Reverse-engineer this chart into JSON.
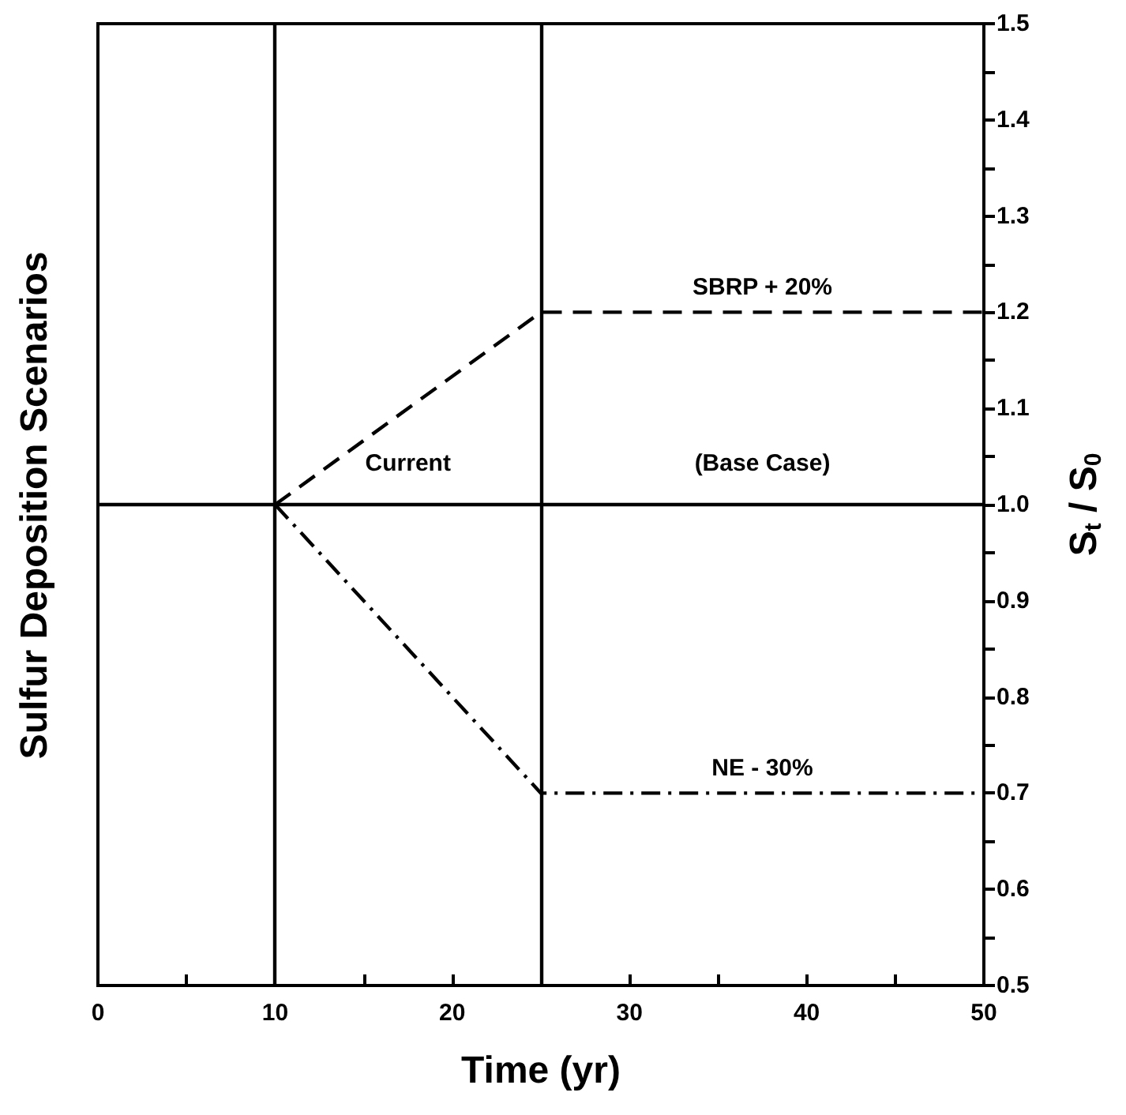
{
  "chart_data": {
    "type": "line",
    "title": "Sulfur Deposition Scenarios",
    "xlabel": "Time (yr)",
    "ylabel": "S$_{t}$ / S$_{0}$",
    "xlim": [
      0,
      50
    ],
    "xticks": [
      0,
      {
        "value": 5,
        "label": null
      },
      10,
      {
        "value": 15,
        "label": null
      },
      20,
      {
        "value": 25,
        "label": null
      },
      30,
      {
        "value": 35,
        "label": null
      },
      40,
      {
        "value": 45,
        "label": null
      },
      50
    ],
    "ylim": [
      0.5,
      1.5
    ],
    "yticks": [
      {
        "value": 0.5,
        "label": "0.5"
      },
      {
        "value": 0.55,
        "label": null
      },
      {
        "value": 0.6,
        "label": "0.6"
      },
      {
        "value": 0.65,
        "label": null
      },
      {
        "value": 0.7,
        "label": "0.7"
      },
      {
        "value": 0.75,
        "label": null
      },
      {
        "value": 0.8,
        "label": "0.8"
      },
      {
        "value": 0.85,
        "label": null
      },
      {
        "value": 0.9,
        "label": "0.9"
      },
      {
        "value": 0.95,
        "label": null
      },
      {
        "value": 1.0,
        "label": "1.0"
      },
      {
        "value": 1.05,
        "label": null
      },
      {
        "value": 1.1,
        "label": "1.1"
      },
      {
        "value": 1.15,
        "label": null
      },
      {
        "value": 1.2,
        "label": "1.2"
      },
      {
        "value": 1.25,
        "label": null
      },
      {
        "value": 1.3,
        "label": "1.3"
      },
      {
        "value": 1.35,
        "label": null
      },
      {
        "value": 1.4,
        "label": "1.4"
      },
      {
        "value": 1.45,
        "label": null
      },
      {
        "value": 1.5,
        "label": "1.5"
      }
    ],
    "series": [
      {
        "color": "#000000",
        "line_style": "solid",
        "x": [
          0,
          50
        ],
        "values": [
          1.0,
          1.0
        ]
      },
      {
        "name": "SBRP + 20%",
        "color": "#000000",
        "line_style": "dashed",
        "x": [
          10,
          25,
          50
        ],
        "values": [
          1.0,
          1.2,
          1.2
        ]
      },
      {
        "name": "NE - 30%",
        "color": "#000000",
        "line_style": "dashdot",
        "x": [
          10,
          25,
          50
        ],
        "values": [
          1.0,
          0.7,
          0.7
        ]
      }
    ],
    "ref_lines": [
      {
        "axis": "x",
        "value": 10,
        "color": "#000000",
        "line_style": "solid"
      },
      {
        "axis": "x",
        "value": 25,
        "color": "#000000",
        "line_style": "solid"
      }
    ],
    "annotations": [
      "Current",
      "(Base Case)"
    ],
    "grid": false,
    "marker": "none"
  }
}
